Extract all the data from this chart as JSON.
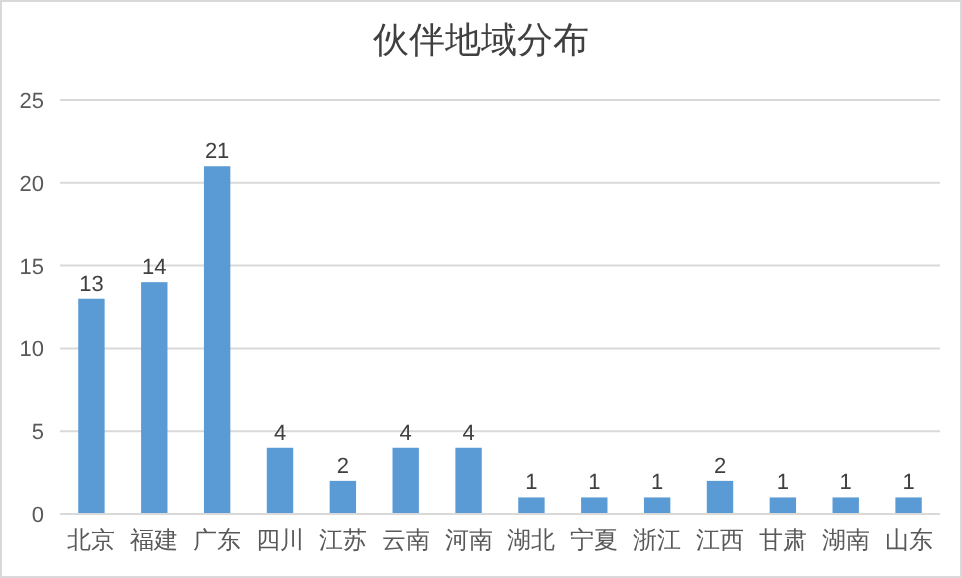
{
  "chart_data": {
    "type": "bar",
    "title": "伙伴地域分布",
    "categories": [
      "北京",
      "福建",
      "广东",
      "四川",
      "江苏",
      "云南",
      "河南",
      "湖北",
      "宁夏",
      "浙江",
      "江西",
      "甘肃",
      "湖南",
      "山东"
    ],
    "values": [
      13,
      14,
      21,
      4,
      2,
      4,
      4,
      1,
      1,
      1,
      2,
      1,
      1,
      1
    ],
    "color": "#5b9bd5",
    "ylim": [
      0,
      25
    ],
    "yticks": [
      0,
      5,
      10,
      15,
      20,
      25
    ],
    "grid": "y",
    "data_labels": true
  }
}
